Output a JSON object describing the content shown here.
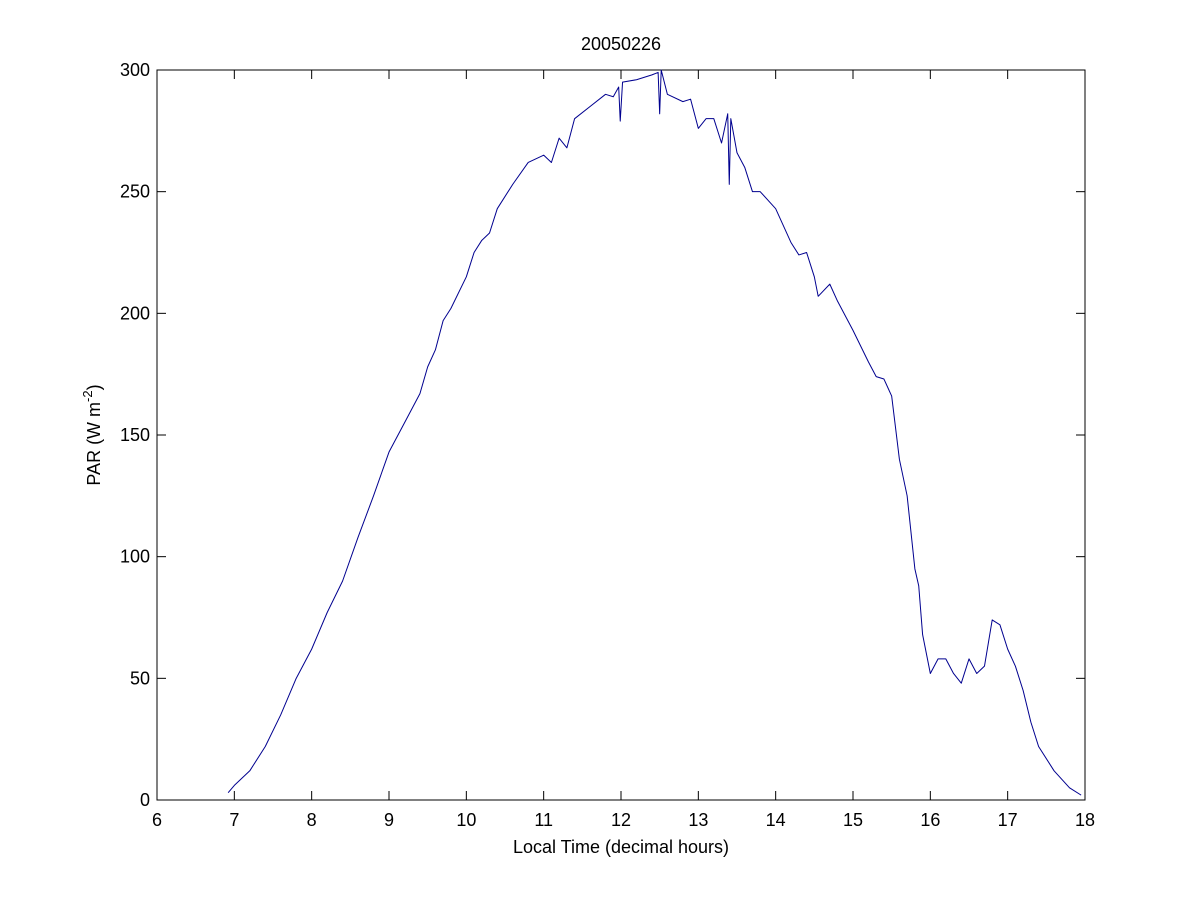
{
  "chart_data": {
    "type": "line",
    "title": "20050226",
    "xlabel": "Local Time (decimal hours)",
    "ylabel": [
      "PAR (W m",
      "-2",
      ")"
    ],
    "xlim": [
      6,
      18
    ],
    "xticks": [
      6,
      7,
      8,
      9,
      10,
      11,
      12,
      13,
      14,
      15,
      16,
      17,
      18
    ],
    "ylim": [
      0,
      300
    ],
    "yticks": [
      0,
      50,
      100,
      150,
      200,
      250,
      300
    ],
    "grid": false,
    "series": [
      {
        "color": "#00008f",
        "x": [
          6.92,
          7.0,
          7.2,
          7.4,
          7.6,
          7.8,
          8.0,
          8.2,
          8.4,
          8.6,
          8.8,
          9.0,
          9.2,
          9.4,
          9.5,
          9.6,
          9.7,
          9.8,
          10.0,
          10.1,
          10.2,
          10.3,
          10.4,
          10.6,
          10.8,
          11.0,
          11.1,
          11.2,
          11.3,
          11.4,
          11.6,
          11.8,
          11.9,
          11.97,
          11.99,
          12.02,
          12.2,
          12.4,
          12.48,
          12.5,
          12.52,
          12.6,
          12.8,
          12.9,
          13.0,
          13.1,
          13.2,
          13.3,
          13.38,
          13.4,
          13.42,
          13.5,
          13.6,
          13.7,
          13.8,
          14.0,
          14.2,
          14.3,
          14.4,
          14.5,
          14.55,
          14.7,
          14.8,
          15.0,
          15.2,
          15.3,
          15.4,
          15.5,
          15.6,
          15.7,
          15.8,
          15.85,
          15.9,
          16.0,
          16.1,
          16.2,
          16.3,
          16.4,
          16.5,
          16.6,
          16.7,
          16.8,
          16.9,
          17.0,
          17.1,
          17.2,
          17.3,
          17.4,
          17.6,
          17.8,
          17.95
        ],
        "values": [
          3,
          6,
          12,
          22,
          35,
          50,
          62,
          77,
          90,
          108,
          125,
          143,
          155,
          167,
          178,
          185,
          197,
          202,
          215,
          225,
          230,
          233,
          243,
          253,
          262,
          265,
          262,
          272,
          268,
          280,
          285,
          290,
          289,
          293,
          279,
          295,
          296,
          298,
          299,
          282,
          300,
          290,
          287,
          288,
          276,
          280,
          280,
          270,
          282,
          253,
          280,
          266,
          260,
          250,
          250,
          243,
          229,
          224,
          225,
          215,
          207,
          212,
          205,
          193,
          180,
          174,
          173,
          166,
          140,
          125,
          95,
          88,
          68,
          52,
          58,
          58,
          52,
          48,
          58,
          52,
          55,
          74,
          72,
          62,
          55,
          45,
          32,
          22,
          12,
          5,
          2
        ]
      }
    ]
  }
}
